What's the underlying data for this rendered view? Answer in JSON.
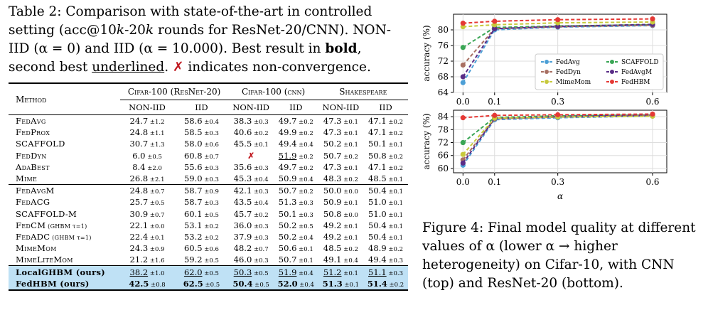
{
  "caption": {
    "prefix": "Table 2: Comparison with state-of-the-art in controlled setting (acc@10",
    "k1": "k",
    "mid": "-20",
    "k2": "k",
    "rest1": " rounds for ResNet-20/CNN). NON-IID (α = 0) and IID (α = 10.000). Best result in ",
    "bold": "bold",
    "rest2": ", second best ",
    "underlined": "underlined",
    "rest3": ". ",
    "cross": "✗",
    "rest4": " indicates non-convergence."
  },
  "table": {
    "method_header": "Method",
    "groups": [
      "Cifar-100 (ResNet-20)",
      "Cifar-100 (cnn)",
      "Shakespeare"
    ],
    "subheaders": [
      "NON-IID",
      "IID",
      "NON-IID",
      "IID",
      "NON-IID",
      "IID"
    ],
    "block1": [
      {
        "m": "FedAvg",
        "c": [
          [
            "24.7",
            "1.2"
          ],
          [
            "58.6",
            "0.4"
          ],
          [
            "38.3",
            "0.3"
          ],
          [
            "49.7",
            "0.2"
          ],
          [
            "47.3",
            "0.1"
          ],
          [
            "47.1",
            "0.2"
          ]
        ]
      },
      {
        "m": "FedProx",
        "c": [
          [
            "24.8",
            "1.1"
          ],
          [
            "58.5",
            "0.3"
          ],
          [
            "40.6",
            "0.2"
          ],
          [
            "49.9",
            "0.2"
          ],
          [
            "47.3",
            "0.1"
          ],
          [
            "47.1",
            "0.2"
          ]
        ]
      },
      {
        "m": "SCAFFOLD",
        "c": [
          [
            "30.7",
            "1.3"
          ],
          [
            "58.0",
            "0.6"
          ],
          [
            "45.5",
            "0.1"
          ],
          [
            "49.4",
            "0.4"
          ],
          [
            "50.2",
            "0.1"
          ],
          [
            "50.1",
            "0.1"
          ]
        ]
      },
      {
        "m": "FedDyn",
        "c": [
          [
            "6.0",
            "0.5"
          ],
          [
            "60.8",
            "0.7"
          ],
          [
            "✗",
            ""
          ],
          [
            "51.9",
            "0.2"
          ],
          [
            "50.7",
            "0.2"
          ],
          [
            "50.8",
            "0.2"
          ]
        ]
      },
      {
        "m": "AdaBest",
        "c": [
          [
            "8.4",
            "2.0"
          ],
          [
            "55.6",
            "0.3"
          ],
          [
            "35.6",
            "0.3"
          ],
          [
            "49.7",
            "0.2"
          ],
          [
            "47.3",
            "0.1"
          ],
          [
            "47.1",
            "0.2"
          ]
        ]
      },
      {
        "m": "Mime",
        "c": [
          [
            "26.8",
            "2.1"
          ],
          [
            "59.0",
            "0.3"
          ],
          [
            "45.3",
            "0.4"
          ],
          [
            "50.9",
            "0.4"
          ],
          [
            "48.3",
            "0.2"
          ],
          [
            "48.5",
            "0.1"
          ]
        ]
      }
    ],
    "block2": [
      {
        "m": "FedAvgM",
        "c": [
          [
            "24.8",
            "0.7"
          ],
          [
            "58.7",
            "0.9"
          ],
          [
            "42.1",
            "0.3"
          ],
          [
            "50.7",
            "0.2"
          ],
          [
            "50.0",
            "0.0"
          ],
          [
            "50.4",
            "0.1"
          ]
        ]
      },
      {
        "m": "FedACG",
        "c": [
          [
            "25.7",
            "0.5"
          ],
          [
            "58.7",
            "0.3"
          ],
          [
            "43.5",
            "0.4"
          ],
          [
            "51.3",
            "0.3"
          ],
          [
            "50.9",
            "0.1"
          ],
          [
            "51.0",
            "0.1"
          ]
        ]
      },
      {
        "m": "SCAFFOLD-M",
        "c": [
          [
            "30.9",
            "0.7"
          ],
          [
            "60.1",
            "0.5"
          ],
          [
            "45.7",
            "0.2"
          ],
          [
            "50.1",
            "0.3"
          ],
          [
            "50.8",
            "0.0"
          ],
          [
            "51.0",
            "0.1"
          ]
        ]
      },
      {
        "m": "FedCM",
        "s": " (GHBM τ=1)",
        "c": [
          [
            "22.1",
            "0.0"
          ],
          [
            "53.1",
            "0.2"
          ],
          [
            "36.0",
            "0.3"
          ],
          [
            "50.2",
            "0.5"
          ],
          [
            "49.2",
            "0.1"
          ],
          [
            "50.4",
            "0.1"
          ]
        ]
      },
      {
        "m": "FedADC",
        "s": " (GHBM τ=1)",
        "c": [
          [
            "22.4",
            "0.1"
          ],
          [
            "53.2",
            "0.2"
          ],
          [
            "37.9",
            "0.3"
          ],
          [
            "50.2",
            "0.4"
          ],
          [
            "49.2",
            "0.1"
          ],
          [
            "50.4",
            "0.1"
          ]
        ]
      },
      {
        "m": "MimeMom",
        "c": [
          [
            "24.3",
            "0.9"
          ],
          [
            "60.5",
            "0.6"
          ],
          [
            "48.2",
            "0.7"
          ],
          [
            "50.6",
            "0.1"
          ],
          [
            "48.5",
            "0.2"
          ],
          [
            "48.9",
            "0.2"
          ]
        ]
      },
      {
        "m": "MimeLiteMom",
        "c": [
          [
            "21.2",
            "1.6"
          ],
          [
            "59.2",
            "0.5"
          ],
          [
            "46.0",
            "0.3"
          ],
          [
            "50.7",
            "0.1"
          ],
          [
            "49.1",
            "0.4"
          ],
          [
            "49.4",
            "0.3"
          ]
        ]
      }
    ],
    "ours": [
      {
        "m": "LocalGHBM (ours)",
        "c": [
          [
            "38.2",
            "1.0"
          ],
          [
            "62.0",
            "0.5"
          ],
          [
            "50.3",
            "0.5"
          ],
          [
            "51.9",
            "0.4"
          ],
          [
            "51.2",
            "0.1"
          ],
          [
            "51.1",
            "0.3"
          ]
        ]
      },
      {
        "m": "FedHBM (ours)",
        "c": [
          [
            "42.5",
            "0.8"
          ],
          [
            "62.5",
            "0.5"
          ],
          [
            "50.4",
            "0.5"
          ],
          [
            "52.0",
            "0.4"
          ],
          [
            "51.3",
            "0.1"
          ],
          [
            "51.4",
            "0.2"
          ]
        ]
      }
    ]
  },
  "figure_caption": "Figure 4: Final model quality at different values of α (lower α → higher heterogeneity) on Cifar-10, with CNN (top) and ResNet-20 (bottom).",
  "chart_data": [
    {
      "type": "line",
      "x": [
        0.0,
        0.1,
        0.3,
        0.6
      ],
      "xticks": [
        "0.0",
        "0.1",
        "0.3",
        "0.6"
      ],
      "ylabel": "accuracy (%)",
      "ylim": [
        64,
        84
      ],
      "yticks": [
        "64",
        "68",
        "72",
        "76",
        "80"
      ],
      "legend": "inside-center-right",
      "series": [
        {
          "name": "FedAvg",
          "color": "#4c9fd6",
          "values": [
            66.5,
            80.0,
            80.7,
            81.1
          ]
        },
        {
          "name": "SCAFFOLD",
          "color": "#3aa655",
          "values": [
            75.5,
            80.6,
            81.0,
            81.3
          ]
        },
        {
          "name": "FedDyn",
          "color": "#a86f62",
          "values": [
            71.0,
            80.3,
            80.8,
            81.2
          ]
        },
        {
          "name": "FedAvgM",
          "color": "#5a2d87",
          "values": [
            68.0,
            80.3,
            80.9,
            81.4
          ]
        },
        {
          "name": "MimeMom",
          "color": "#c7c93c",
          "values": [
            80.8,
            81.3,
            81.8,
            82.0
          ]
        },
        {
          "name": "FedHBM",
          "color": "#e53935",
          "values": [
            81.7,
            82.2,
            82.6,
            82.8
          ]
        }
      ]
    },
    {
      "type": "line",
      "x": [
        0.0,
        0.1,
        0.3,
        0.6
      ],
      "xticks": [
        "0.0",
        "0.1",
        "0.3",
        "0.6"
      ],
      "xlabel": "α",
      "ylabel": "accuracy (%)",
      "ylim": [
        58,
        87
      ],
      "yticks": [
        "60",
        "66",
        "72",
        "78",
        "84"
      ],
      "series": [
        {
          "name": "FedAvg",
          "color": "#4c9fd6",
          "values": [
            61.5,
            82.6,
            83.5,
            84.3
          ]
        },
        {
          "name": "SCAFFOLD",
          "color": "#3aa655",
          "values": [
            72.0,
            83.6,
            84.4,
            84.8
          ]
        },
        {
          "name": "FedDyn",
          "color": "#a86f62",
          "values": [
            64.0,
            83.0,
            83.8,
            84.6
          ]
        },
        {
          "name": "FedAvgM",
          "color": "#5a2d87",
          "values": [
            62.5,
            83.2,
            84.1,
            84.7
          ]
        },
        {
          "name": "MimeMom",
          "color": "#c7c93c",
          "values": [
            66.5,
            83.3,
            83.9,
            84.2
          ]
        },
        {
          "name": "FedHBM",
          "color": "#e53935",
          "values": [
            83.5,
            84.6,
            84.9,
            85.2
          ]
        }
      ]
    }
  ]
}
